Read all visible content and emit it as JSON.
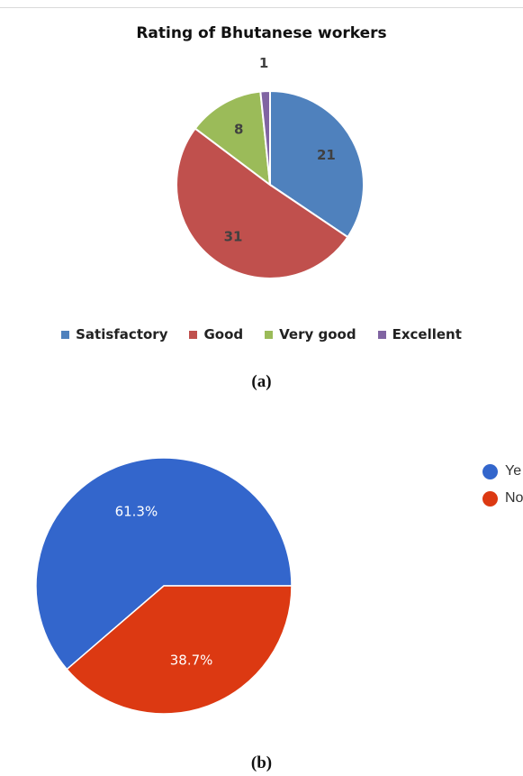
{
  "chart_data": [
    {
      "type": "pie",
      "title": "Rating of Bhutanese workers",
      "categories": [
        "Satisfactory",
        "Good",
        "Very good",
        "Excellent"
      ],
      "values": [
        21,
        31,
        8,
        1
      ],
      "data_labels": [
        "21",
        "31",
        "8",
        "1"
      ],
      "colors": [
        "#4f81bd",
        "#c0504d",
        "#9bbb59",
        "#8064a2"
      ],
      "legend": "bottom",
      "caption": "(a)"
    },
    {
      "type": "pie",
      "title": "",
      "categories": [
        "Ye",
        "No"
      ],
      "values": [
        61.3,
        38.7
      ],
      "data_labels": [
        "61.3%",
        "38.7%"
      ],
      "colors": [
        "#3366cc",
        "#dc3912"
      ],
      "legend": "right",
      "caption": "(b)"
    }
  ]
}
